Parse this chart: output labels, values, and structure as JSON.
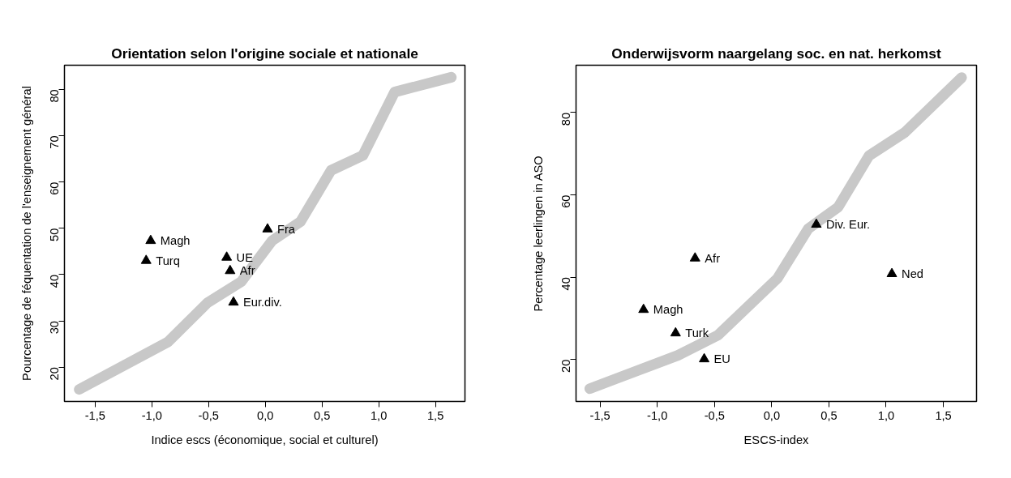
{
  "chart_data": [
    {
      "type": "scatter",
      "title": "Orientation selon l'origine sociale et nationale",
      "xlabel": "Indice escs (économique, social et culturel)",
      "ylabel": "Pourcentage de féquentation de l'enseignement général",
      "grid": false,
      "xlim": [
        -1.77,
        1.76
      ],
      "ylim": [
        12.6,
        85.2
      ],
      "xticks": [
        {
          "value": -1.5,
          "label": "-1,5"
        },
        {
          "value": -1,
          "label": "-1,0"
        },
        {
          "value": -0.5,
          "label": "-0,5"
        },
        {
          "value": 0,
          "label": "0,0"
        },
        {
          "value": 0.5,
          "label": "0,5"
        },
        {
          "value": 1,
          "label": "1,0"
        },
        {
          "value": 1.5,
          "label": "1,5"
        }
      ],
      "yticks": [
        20,
        30,
        40,
        50,
        60,
        70,
        80
      ],
      "series": [
        {
          "type": "line",
          "color": "#c8c8c8",
          "x": [
            -1.64,
            -0.86,
            -0.51,
            -0.21,
            0.06,
            0.31,
            0.58,
            0.86,
            1.14,
            1.64
          ],
          "values": [
            15.2,
            25.4,
            33.9,
            38.5,
            47.3,
            51.4,
            62.5,
            65.7,
            79.4,
            82.6
          ]
        },
        {
          "marker": "triangle",
          "color": "#000000",
          "x": [
            -1.01,
            -1.05,
            -0.34,
            -0.31,
            -0.28,
            0.02
          ],
          "values": [
            47.3,
            43.0,
            43.7,
            40.8,
            34.0,
            49.8
          ]
        }
      ],
      "annotations": [
        {
          "text": "Magh",
          "x": -1.01,
          "y": 47.3
        },
        {
          "text": "Turq",
          "x": -1.05,
          "y": 43.0
        },
        {
          "text": "UE",
          "x": -0.34,
          "y": 43.7
        },
        {
          "text": "Afr",
          "x": -0.31,
          "y": 40.8
        },
        {
          "text": "Eur.div.",
          "x": -0.28,
          "y": 34.0
        },
        {
          "text": "Fra",
          "x": 0.02,
          "y": 49.8
        }
      ]
    },
    {
      "type": "scatter",
      "title": "Onderwijsvorm naargelang soc. en nat. herkomst",
      "xlabel": "ESCS-index",
      "ylabel": "Percentage leerlingen in ASO",
      "grid": false,
      "xlim": [
        -1.71,
        1.79
      ],
      "ylim": [
        9.8,
        91.5
      ],
      "xticks": [
        {
          "value": -1.5,
          "label": "-1,5"
        },
        {
          "value": -1,
          "label": "-1,0"
        },
        {
          "value": -0.5,
          "label": "-0,5"
        },
        {
          "value": 0,
          "label": "0,0"
        },
        {
          "value": 0.5,
          "label": "0,5"
        },
        {
          "value": 1,
          "label": "1,0"
        },
        {
          "value": 1.5,
          "label": "1,5"
        }
      ],
      "yticks": [
        20,
        40,
        60,
        80
      ],
      "series": [
        {
          "type": "line",
          "color": "#c8c8c8",
          "x": [
            -1.59,
            -0.82,
            -0.47,
            0.05,
            0.32,
            0.58,
            0.85,
            1.16,
            1.66
          ],
          "values": [
            12.9,
            21.0,
            25.9,
            39.7,
            51.8,
            57.0,
            69.5,
            75.1,
            88.5
          ]
        },
        {
          "marker": "triangle",
          "color": "#000000",
          "x": [
            -0.67,
            -1.12,
            -0.84,
            -0.59,
            0.39,
            1.05
          ],
          "values": [
            44.6,
            32.1,
            26.4,
            20.1,
            52.8,
            40.8
          ]
        }
      ],
      "annotations": [
        {
          "text": "Afr",
          "x": -0.67,
          "y": 44.6
        },
        {
          "text": "Magh",
          "x": -1.12,
          "y": 32.1
        },
        {
          "text": "Turk",
          "x": -0.84,
          "y": 26.4
        },
        {
          "text": "EU",
          "x": -0.59,
          "y": 20.1
        },
        {
          "text": "Div. Eur.",
          "x": 0.39,
          "y": 52.8
        },
        {
          "text": "Ned",
          "x": 1.05,
          "y": 40.8
        }
      ]
    }
  ]
}
